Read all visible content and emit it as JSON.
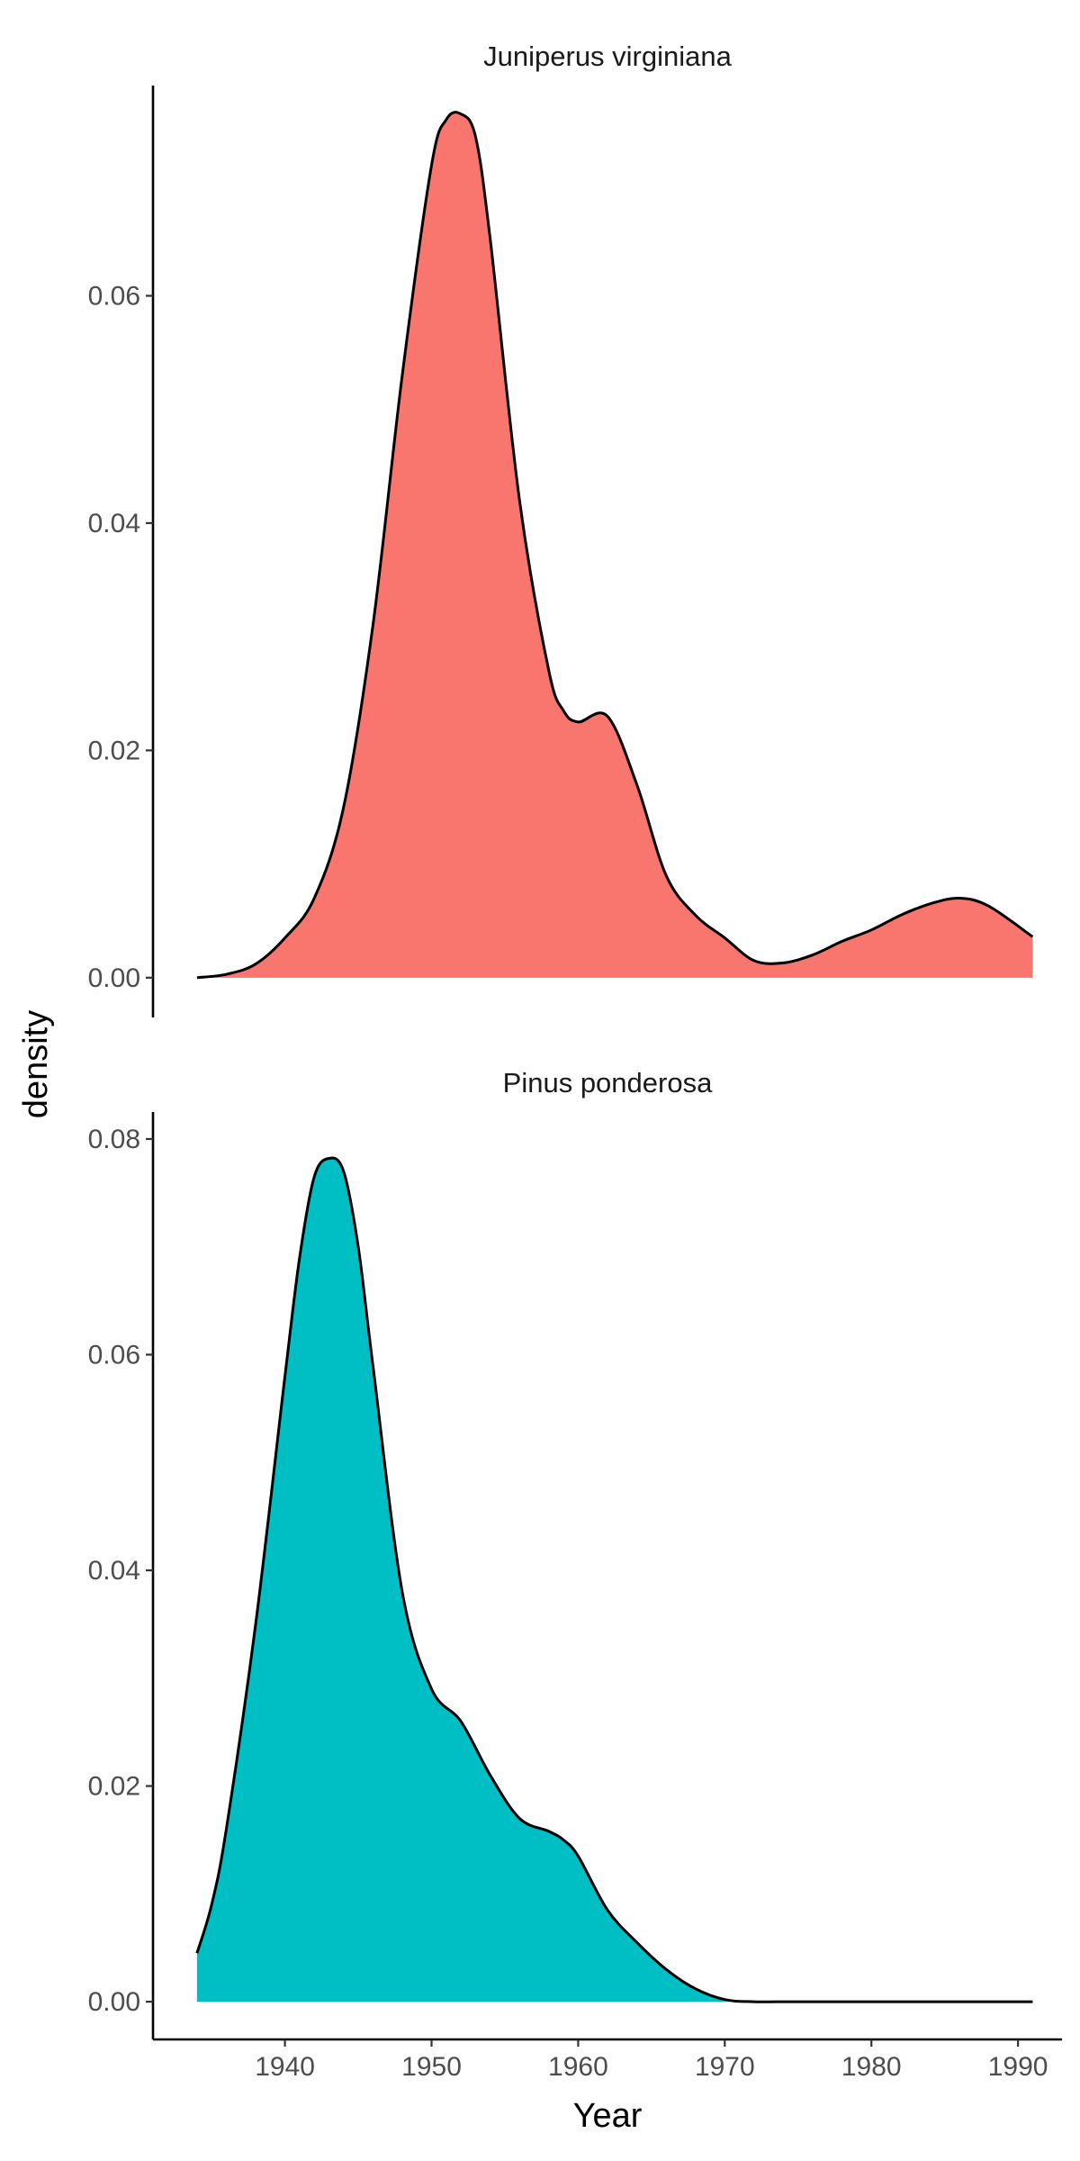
{
  "chart_data": {
    "type": "area",
    "plot_kind": "faceted density",
    "xlabel": "Year",
    "ylabel": "density",
    "x_ticks": [
      1940,
      1950,
      1960,
      1970,
      1980,
      1990
    ],
    "xlim": [
      1931,
      1993
    ],
    "grid": false,
    "legend": "none",
    "outline_color": "#000000",
    "facets": [
      {
        "label": "Juniperus virginiana",
        "fill": "#F8766D",
        "ylim": [
          -0.0035,
          0.0785
        ],
        "y_ticks": [
          0.0,
          0.02,
          0.04,
          0.06
        ],
        "x": [
          1934,
          1936,
          1938,
          1940,
          1942,
          1944,
          1946,
          1948,
          1950,
          1951,
          1952,
          1953,
          1954,
          1956,
          1958,
          1959,
          1960,
          1962,
          1964,
          1966,
          1968,
          1970,
          1972,
          1974,
          1976,
          1978,
          1980,
          1982,
          1984,
          1986,
          1988,
          1991
        ],
        "y": [
          0.0,
          0.0003,
          0.0012,
          0.0035,
          0.007,
          0.015,
          0.031,
          0.053,
          0.0715,
          0.0755,
          0.076,
          0.074,
          0.065,
          0.042,
          0.027,
          0.0235,
          0.0225,
          0.023,
          0.017,
          0.009,
          0.0055,
          0.0035,
          0.0015,
          0.0013,
          0.002,
          0.0032,
          0.0042,
          0.0055,
          0.0065,
          0.007,
          0.0063,
          0.0036
        ]
      },
      {
        "label": "Pinus ponderosa",
        "fill": "#00BFC4",
        "ylim": [
          -0.0035,
          0.0825
        ],
        "y_ticks": [
          0.0,
          0.02,
          0.04,
          0.06,
          0.08
        ],
        "x": [
          1934,
          1935,
          1936,
          1938,
          1940,
          1941,
          1942,
          1943,
          1944,
          1945,
          1946,
          1948,
          1950,
          1952,
          1954,
          1956,
          1958,
          1959,
          1960,
          1962,
          1964,
          1966,
          1968,
          1970,
          1972,
          1975,
          1980,
          1991
        ],
        "y": [
          0.0045,
          0.009,
          0.016,
          0.035,
          0.058,
          0.069,
          0.0765,
          0.0782,
          0.077,
          0.07,
          0.059,
          0.038,
          0.029,
          0.026,
          0.021,
          0.017,
          0.0158,
          0.015,
          0.0135,
          0.0085,
          0.0055,
          0.003,
          0.0012,
          0.0002,
          0.0,
          0.0,
          0.0,
          0.0
        ]
      }
    ]
  }
}
